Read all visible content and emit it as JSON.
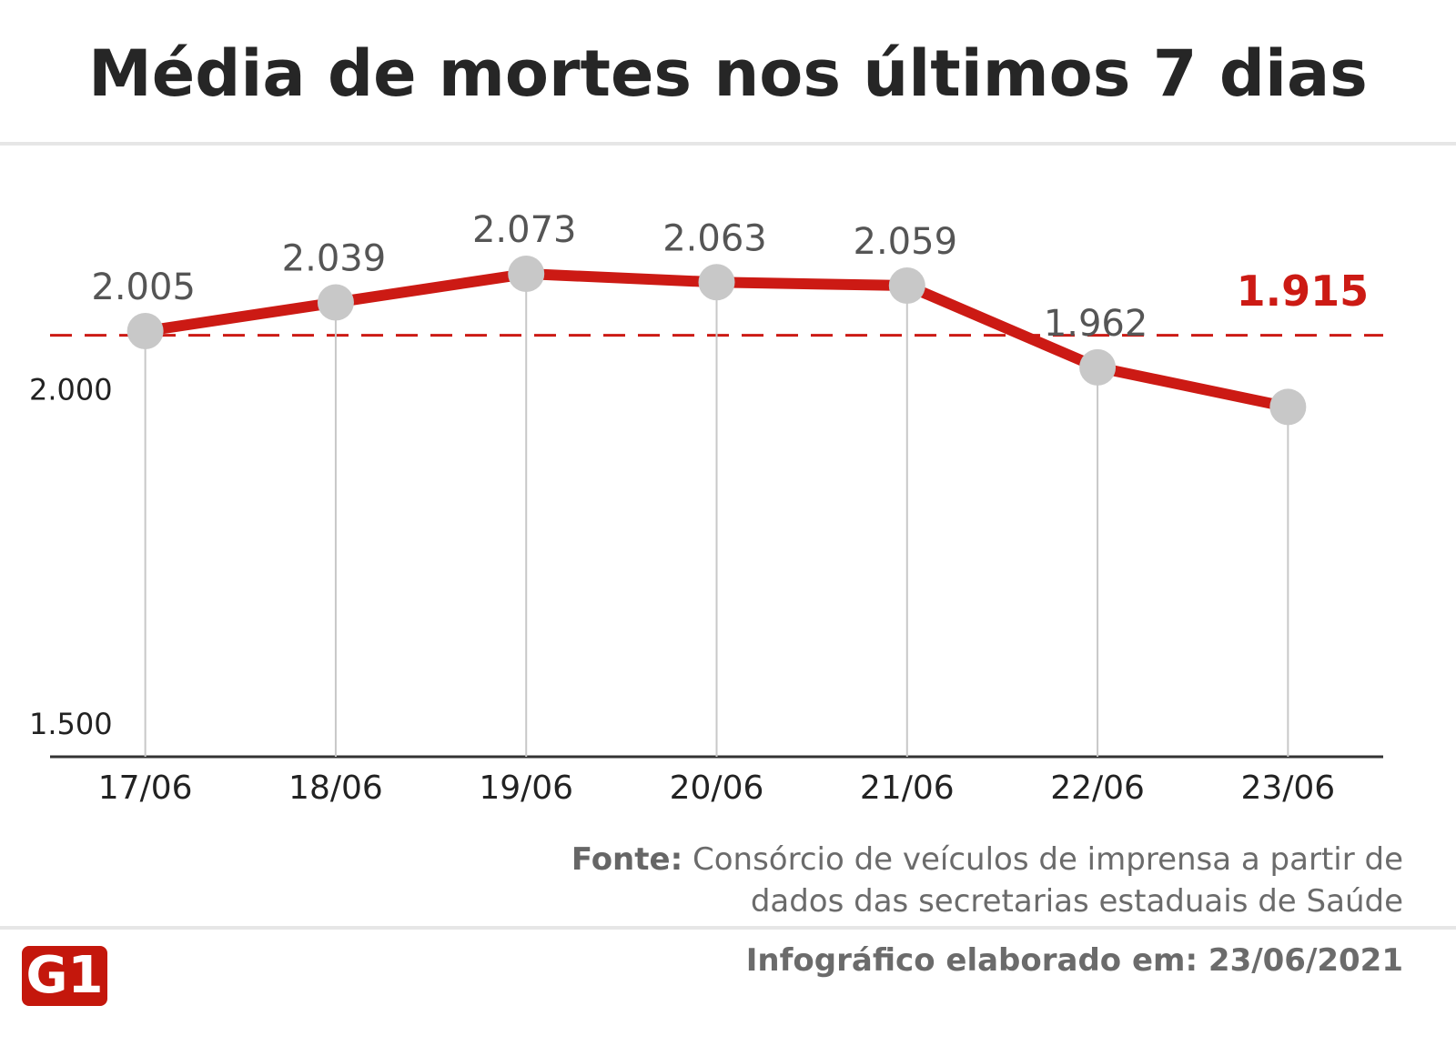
{
  "chart_data": {
    "type": "line",
    "title": "Média de mortes nos últimos 7 dias",
    "categories": [
      "17/06",
      "18/06",
      "19/06",
      "20/06",
      "21/06",
      "22/06",
      "23/06"
    ],
    "values": [
      2005,
      2039,
      2073,
      2063,
      2059,
      1962,
      1915
    ],
    "value_labels": [
      "2.005",
      "2.039",
      "2.073",
      "2.063",
      "2.059",
      "1.962",
      "1.915"
    ],
    "color": "#cc1a14",
    "point_color": "#c8c8c8",
    "ylim": [
      1500,
      2100
    ],
    "yticks": [
      {
        "value": 1500,
        "label": "1.500"
      },
      {
        "value": 2000,
        "label": "2.000"
      }
    ],
    "grid": true,
    "highlight_last": true
  },
  "footer": {
    "source_label": "Fonte:",
    "source": "Consórcio de veículos de imprensa a partir de dados das secretarias estaduais de Saúde",
    "note": "Infográfico elaborado em: 23/06/2021",
    "logo": "G1"
  }
}
